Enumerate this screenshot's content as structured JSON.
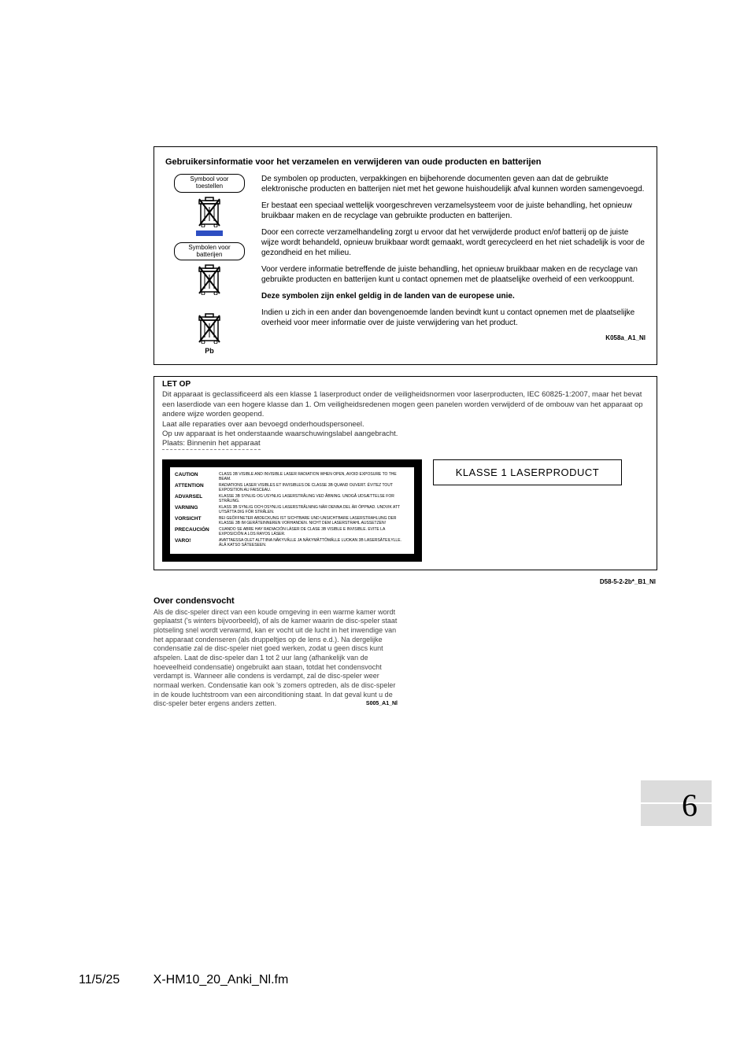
{
  "infoBox": {
    "title": "Gebruikersinformatie voor het verzamelen en verwijderen van oude producten en batterijen",
    "leftLabel1": "Symbool voor toestellen",
    "leftLabel2": "Symbolen voor batterijen",
    "pb": "Pb",
    "p1": "De symbolen op producten, verpakkingen en bijbehorende documenten geven aan dat de gebruikte elektronische producten en batterijen niet met het gewone huishoudelijk afval kunnen worden samengevoegd.",
    "p2": "Er bestaat een speciaal wettelijk voorgeschreven verzamelsysteem voor de juiste behandling, het opnieuw bruikbaar maken en de recyclage van gebruikte producten en batterijen.",
    "p3": "Door een correcte verzamelhandeling zorgt u ervoor dat het verwijderde product en/of batterij op de juiste wijze wordt behandeld, opnieuw bruikbaar wordt gemaakt, wordt gerecycleerd en het niet schadelijk is voor de gezondheid en het milieu.",
    "p4": "Voor verdere informatie betreffende de juiste behandling, het opnieuw bruikbaar maken en de recyclage van gebruikte producten en batterijen kunt u contact opnemen met de plaatselijke overheid of een verkooppunt.",
    "p5": "Deze symbolen zijn enkel geldig in de landen van de europese unie.",
    "p6": "Indien u zich in een ander dan bovengenoemde landen bevindt kunt u contact opnemen met de plaatselijke overheid voor meer informatie over de juiste verwijdering van het product.",
    "code": "K058a_A1_Nl"
  },
  "letop": {
    "head": "LET OP",
    "body": "Dit apparaat is geclassificeerd als een klasse 1 laserproduct onder de veiligheidsnormen voor laserproducten, IEC 60825-1:2007, maar het bevat een laserdiode van een hogere klasse dan 1. Om veiligheidsredenen mogen geen panelen worden verwijderd of de ombouw van het apparaat op andere wijze worden geopend.\nLaat alle reparaties over aan bevoegd onderhoudspersoneel.\nOp uw apparaat is het onderstaande waarschuwingslabel aangebracht.",
    "plaats": "Plaats: Binnenin het apparaat",
    "klasse": "KLASSE 1 LASERPRODUCT",
    "warnings": [
      {
        "k": "CAUTION",
        "v": "CLASS 3B VISIBLE AND INVISIBLE LASER RADIATION WHEN OPEN, AVOID EXPOSURE TO THE BEAM."
      },
      {
        "k": "ATTENTION",
        "v": "RADIATIONS LASER VISIBLES ET INVISIBLES DE CLASSE 3B QUAND OUVERT. ÉVITEZ TOUT EXPOSITION AU FAISCEAU."
      },
      {
        "k": "ADVARSEL",
        "v": "KLASSE 3B SYNLIG OG USYNLIG LASERSTRÅLING VED ÅBNING. UNDGÅ UDSÆTTELSE FOR STRÅLING."
      },
      {
        "k": "VARNING",
        "v": "KLASS 3B SYNLIG OCH OSYNLIG LASERSTRÅLNING NÄR DENNA DEL ÄR ÖPPNAD. UNDVIK ATT UTSÄTTA DIG FÖR STRÅLEN."
      },
      {
        "k": "VORSICHT",
        "v": "BEI GEÖFFNETER ABDECKUNG IST SICHTBARE UND UNSICHTBARE LASERSTRAHLUNG DER KLASSE 3B IM GERÄTEINNEREN VORHANDEN. NICHT DEM LASERSTRAHL AUSSETZEN!"
      },
      {
        "k": "PRECAUCIÓN",
        "v": "CUANDO SE ABRE HAY RADIACIÓN LÁSER DE CLASE 3B VISIBLE E INVISIBLE. EVITE LA EXPOSICIÓN A LOS RAYOS LÁSER."
      },
      {
        "k": "VARO!",
        "v": "AVATTAESSA OLET ALTTIINA NÄKYVÄLLE JA NÄKYMÄTTÖMÄLLE LUOKAN 3B LASERSÄTEILYLLE. ÄLÄ KATSO SÄTEESEEN."
      }
    ],
    "code": "D58-5-2-2b*_B1_Nl"
  },
  "condens": {
    "title": "Over condensvocht",
    "body": "Als de disc-speler direct van een koude omgeving in een warme kamer wordt geplaatst ('s winters bijvoorbeeld), of als de kamer waarin de disc-speler staat plotseling snel wordt verwarmd, kan er vocht uit de lucht in het inwendige van het apparaat condenseren (als druppeltjes op de lens e.d.). Na dergelijke condensatie zal de disc-speler niet goed werken, zodat u geen discs kunt afspelen. Laat de disc-speler dan 1 tot 2 uur lang (afhankelijk van de hoeveelheid condensatie) ongebruikt aan staan, totdat het condensvocht verdampt is. Wanneer alle condens is verdampt, zal de disc-speler weer normaal werken. Condensatie kan ook 's zomers optreden, als de disc-speler in de koude luchtstroom van een airconditioning staat. In dat geval kunt u de disc-speler beter ergens anders zetten.",
    "code": "S005_A1_Nl"
  },
  "pageNumber": "6",
  "footer": {
    "date": "11/5/25",
    "file": "X-HM10_20_Anki_Nl.fm"
  }
}
